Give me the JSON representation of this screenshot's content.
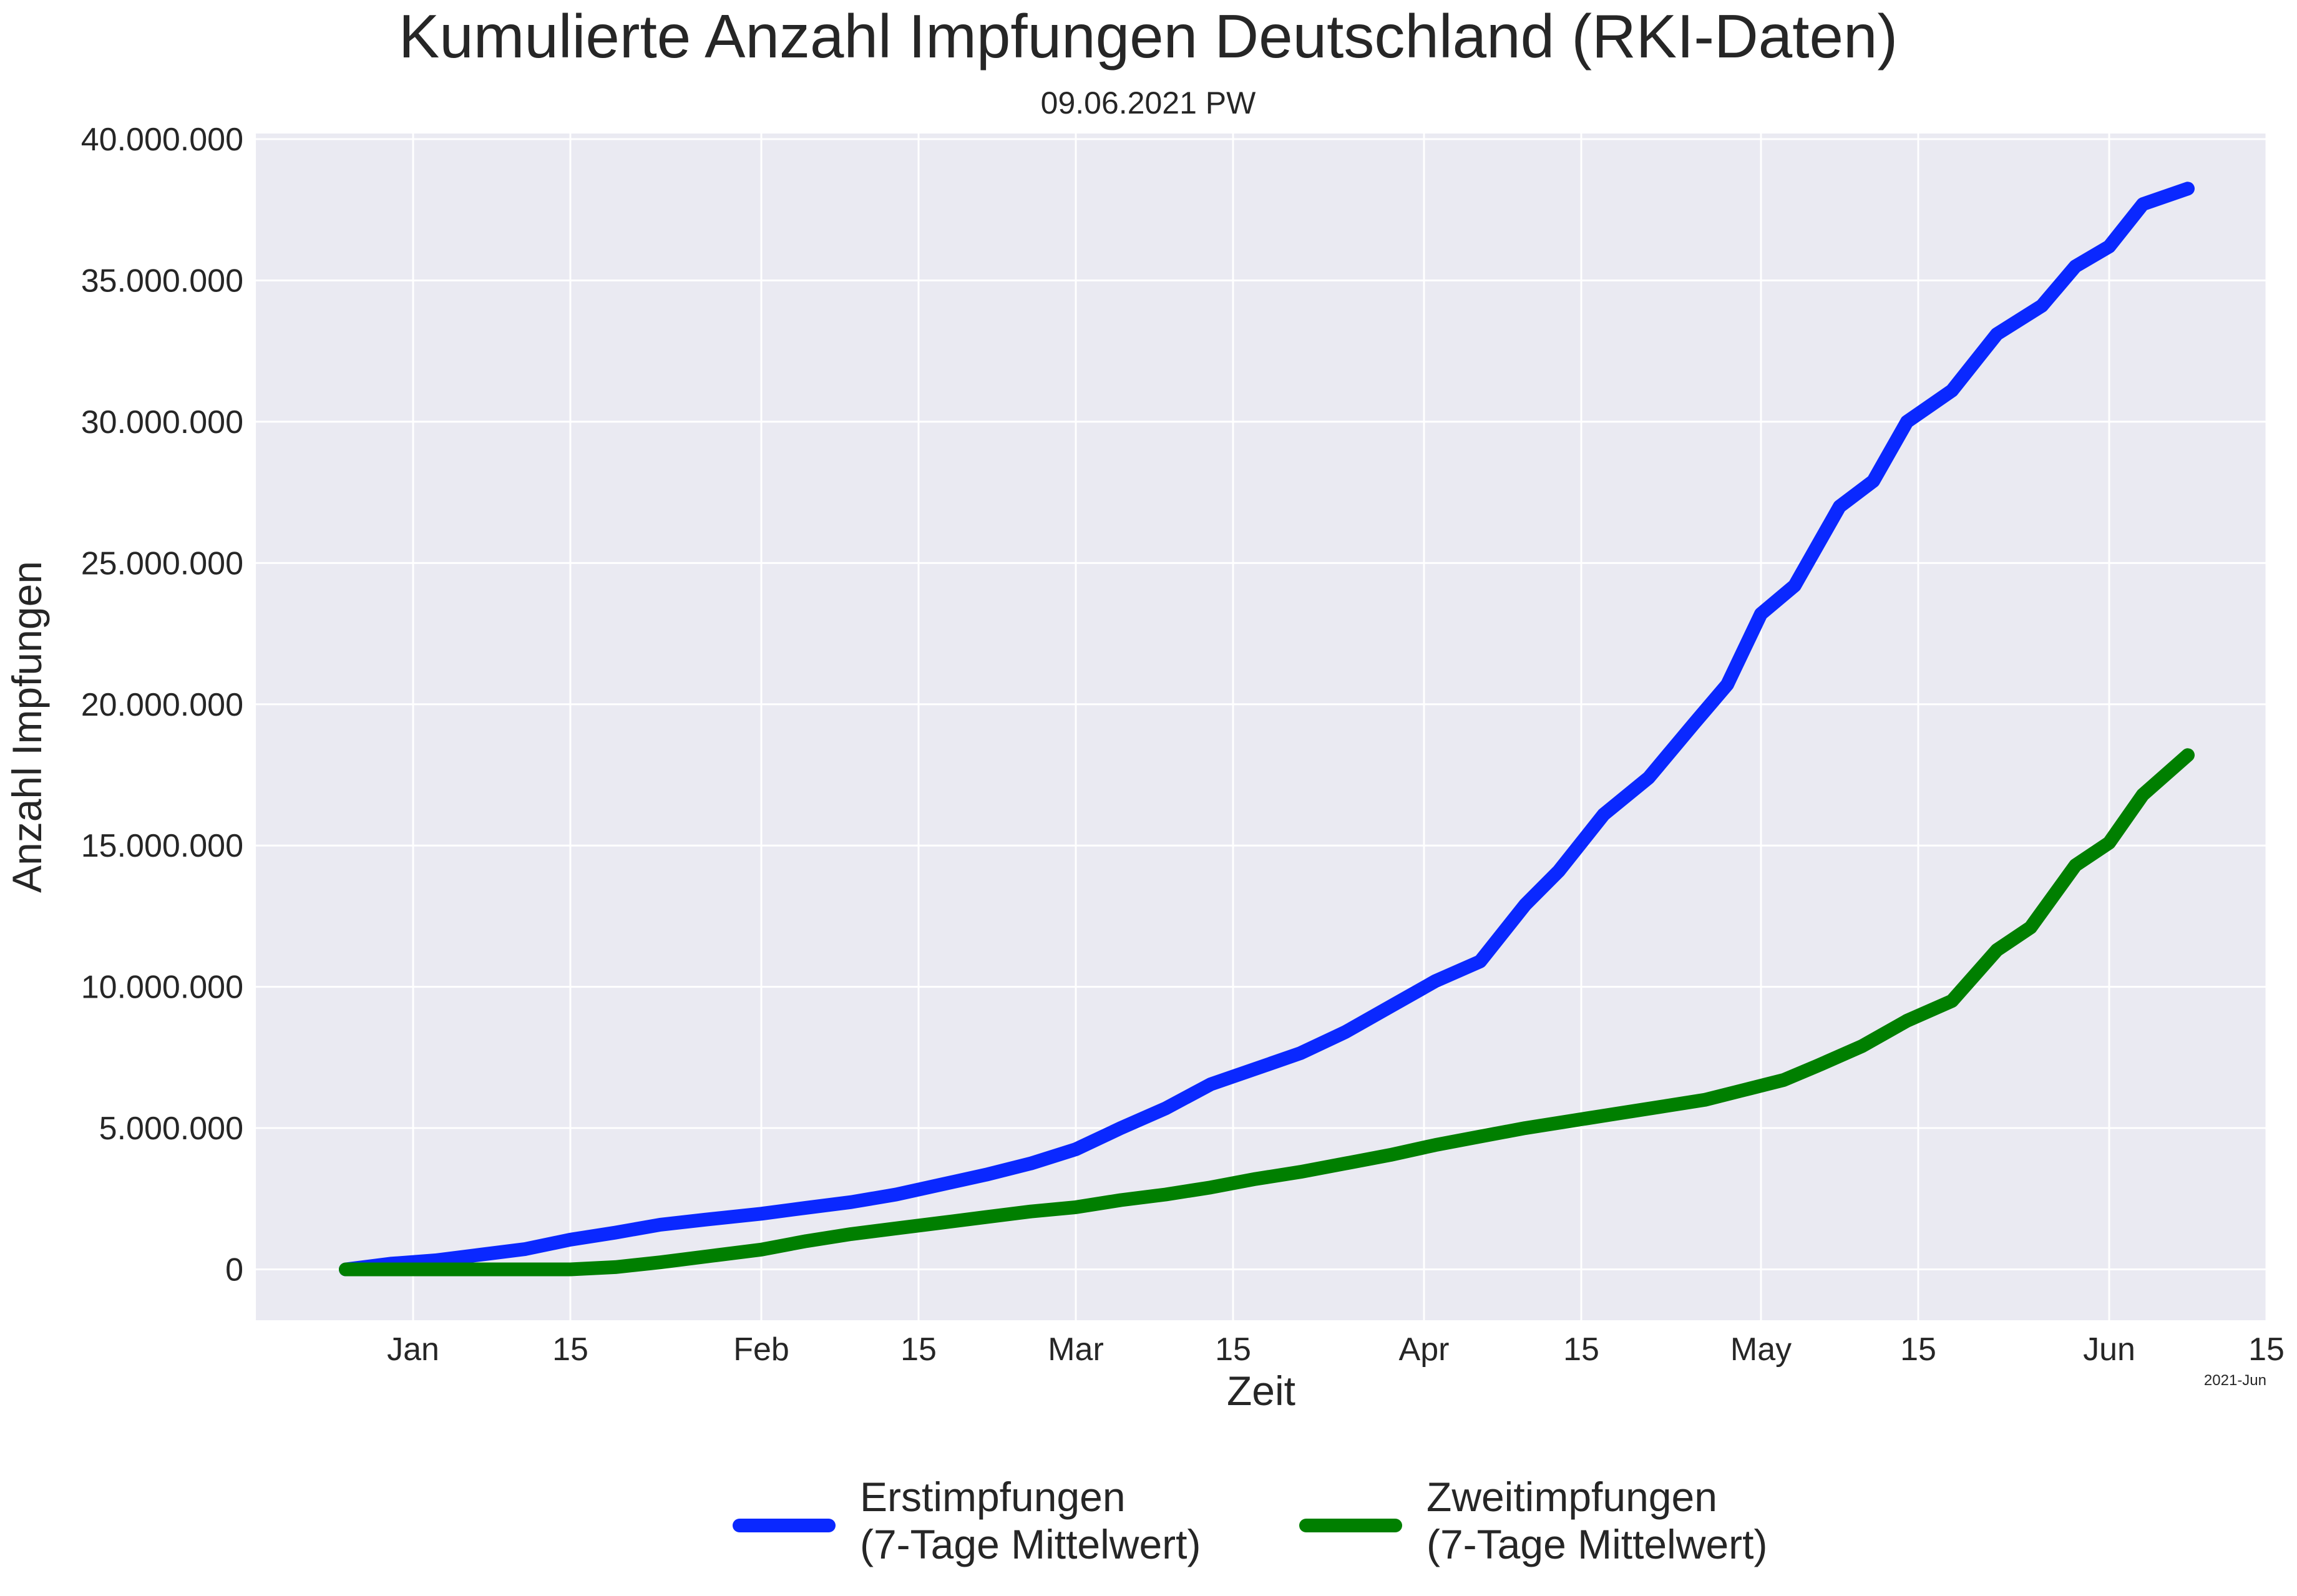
{
  "chart_data": {
    "type": "line",
    "title": "Kumulierte Anzahl Impfungen Deutschland (RKI-Daten)",
    "subtitle": "09.06.2021 PW",
    "xlabel": "Zeit",
    "ylabel": "Anzahl Impfungen",
    "x_offset_label": "2021-Jun",
    "xlim": [
      "2020-12-18",
      "2021-06-15"
    ],
    "ylim": [
      -1800000,
      40200000
    ],
    "grid": true,
    "legend_position": "bottom-center",
    "x_ticks": [
      {
        "date": "2021-01-01",
        "label": "Jan"
      },
      {
        "date": "2021-01-15",
        "label": "15"
      },
      {
        "date": "2021-02-01",
        "label": "Feb"
      },
      {
        "date": "2021-02-15",
        "label": "15"
      },
      {
        "date": "2021-03-01",
        "label": "Mar"
      },
      {
        "date": "2021-03-15",
        "label": "15"
      },
      {
        "date": "2021-04-01",
        "label": "Apr"
      },
      {
        "date": "2021-04-15",
        "label": "15"
      },
      {
        "date": "2021-05-01",
        "label": "May"
      },
      {
        "date": "2021-05-15",
        "label": "15"
      },
      {
        "date": "2021-06-01",
        "label": "Jun"
      },
      {
        "date": "2021-06-15",
        "label": "15"
      }
    ],
    "y_ticks": [
      {
        "value": 0,
        "label": "0"
      },
      {
        "value": 5000000,
        "label": "5.000.000"
      },
      {
        "value": 10000000,
        "label": "10.000.000"
      },
      {
        "value": 15000000,
        "label": "15.000.000"
      },
      {
        "value": 20000000,
        "label": "20.000.000"
      },
      {
        "value": 25000000,
        "label": "25.000.000"
      },
      {
        "value": 30000000,
        "label": "30.000.000"
      },
      {
        "value": 35000000,
        "label": "35.000.000"
      },
      {
        "value": 40000000,
        "label": "40.000.000"
      }
    ],
    "series": [
      {
        "name": "Erstimpfungen\n(7-Tage Mittelwert)",
        "color": "#0a28ff",
        "points": [
          [
            "2020-12-26",
            0
          ],
          [
            "2020-12-30",
            200000
          ],
          [
            "2021-01-03",
            320000
          ],
          [
            "2021-01-07",
            520000
          ],
          [
            "2021-01-11",
            720000
          ],
          [
            "2021-01-15",
            1050000
          ],
          [
            "2021-01-19",
            1300000
          ],
          [
            "2021-01-23",
            1580000
          ],
          [
            "2021-01-27",
            1760000
          ],
          [
            "2021-02-01",
            1970000
          ],
          [
            "2021-02-05",
            2180000
          ],
          [
            "2021-02-09",
            2380000
          ],
          [
            "2021-02-13",
            2650000
          ],
          [
            "2021-02-17",
            3000000
          ],
          [
            "2021-02-21",
            3350000
          ],
          [
            "2021-02-25",
            3750000
          ],
          [
            "2021-03-01",
            4250000
          ],
          [
            "2021-03-05",
            5000000
          ],
          [
            "2021-03-09",
            5700000
          ],
          [
            "2021-03-13",
            6550000
          ],
          [
            "2021-03-17",
            7100000
          ],
          [
            "2021-03-21",
            7650000
          ],
          [
            "2021-03-25",
            8400000
          ],
          [
            "2021-03-29",
            9300000
          ],
          [
            "2021-04-02",
            10200000
          ],
          [
            "2021-04-06",
            10900000
          ],
          [
            "2021-04-10",
            12900000
          ],
          [
            "2021-04-13",
            14100000
          ],
          [
            "2021-04-17",
            16100000
          ],
          [
            "2021-04-21",
            17400000
          ],
          [
            "2021-04-25",
            19300000
          ],
          [
            "2021-04-28",
            20700000
          ],
          [
            "2021-05-01",
            23200000
          ],
          [
            "2021-05-04",
            24200000
          ],
          [
            "2021-05-08",
            27000000
          ],
          [
            "2021-05-11",
            27900000
          ],
          [
            "2021-05-14",
            30000000
          ],
          [
            "2021-05-18",
            31100000
          ],
          [
            "2021-05-22",
            33100000
          ],
          [
            "2021-05-26",
            34100000
          ],
          [
            "2021-05-29",
            35500000
          ],
          [
            "2021-06-01",
            36200000
          ],
          [
            "2021-06-04",
            37700000
          ],
          [
            "2021-06-08",
            38250000
          ]
        ]
      },
      {
        "name": "Zweitimpfungen\n(7-Tage Mittelwert)",
        "color": "#007f00",
        "points": [
          [
            "2020-12-26",
            0
          ],
          [
            "2021-01-15",
            0
          ],
          [
            "2021-01-19",
            80000
          ],
          [
            "2021-01-23",
            250000
          ],
          [
            "2021-01-28",
            500000
          ],
          [
            "2021-02-01",
            700000
          ],
          [
            "2021-02-05",
            1000000
          ],
          [
            "2021-02-09",
            1250000
          ],
          [
            "2021-02-13",
            1450000
          ],
          [
            "2021-02-17",
            1650000
          ],
          [
            "2021-02-21",
            1850000
          ],
          [
            "2021-02-25",
            2050000
          ],
          [
            "2021-03-01",
            2200000
          ],
          [
            "2021-03-05",
            2450000
          ],
          [
            "2021-03-09",
            2650000
          ],
          [
            "2021-03-13",
            2900000
          ],
          [
            "2021-03-17",
            3200000
          ],
          [
            "2021-03-21",
            3450000
          ],
          [
            "2021-03-25",
            3750000
          ],
          [
            "2021-03-29",
            4050000
          ],
          [
            "2021-04-02",
            4400000
          ],
          [
            "2021-04-06",
            4700000
          ],
          [
            "2021-04-10",
            5000000
          ],
          [
            "2021-04-14",
            5250000
          ],
          [
            "2021-04-18",
            5500000
          ],
          [
            "2021-04-22",
            5750000
          ],
          [
            "2021-04-26",
            6000000
          ],
          [
            "2021-04-30",
            6400000
          ],
          [
            "2021-05-03",
            6700000
          ],
          [
            "2021-05-06",
            7200000
          ],
          [
            "2021-05-10",
            7900000
          ],
          [
            "2021-05-14",
            8800000
          ],
          [
            "2021-05-18",
            9500000
          ],
          [
            "2021-05-22",
            11300000
          ],
          [
            "2021-05-25",
            12100000
          ],
          [
            "2021-05-29",
            14300000
          ],
          [
            "2021-06-01",
            15100000
          ],
          [
            "2021-06-04",
            16800000
          ],
          [
            "2021-06-08",
            18200000
          ]
        ]
      }
    ]
  }
}
